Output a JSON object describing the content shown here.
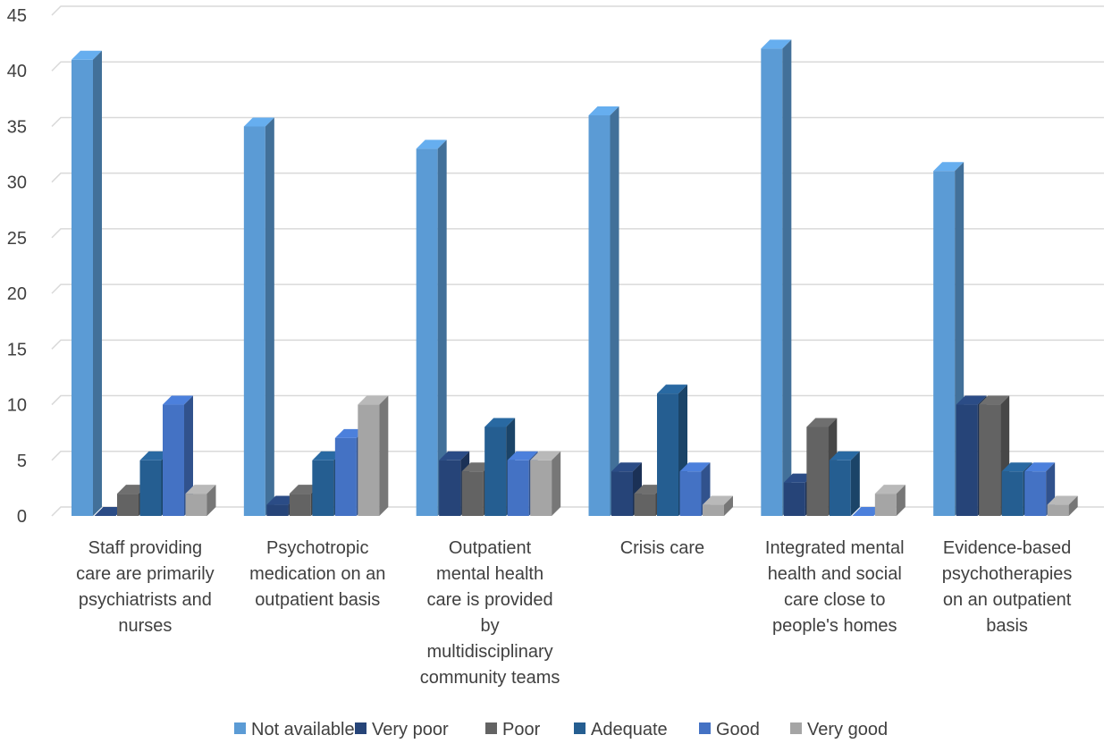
{
  "chart_data": {
    "type": "bar",
    "title": "",
    "xlabel": "",
    "ylabel": "",
    "ylim": [
      0,
      45
    ],
    "yticks": [
      "0",
      "5",
      "10",
      "15",
      "20",
      "25",
      "30",
      "35",
      "40",
      "45"
    ],
    "grid": true,
    "legend_position": "bottom",
    "categories": [
      [
        "Staff providing",
        "care are primarily",
        "psychiatrists and",
        "nurses"
      ],
      [
        "Psychotropic",
        "medication on an",
        "outpatient basis"
      ],
      [
        "Outpatient",
        "mental health",
        "care is provided",
        "by",
        "multidisciplinary",
        "community teams"
      ],
      [
        "Crisis care"
      ],
      [
        "Integrated mental",
        "health and social",
        "care close to",
        "people's homes"
      ],
      [
        "Evidence-based",
        "psychotherapies",
        "on an outpatient",
        "basis"
      ]
    ],
    "series": [
      {
        "name": "Not available",
        "color": "#5B9BD5",
        "values": [
          41,
          35,
          33,
          36,
          42,
          31
        ]
      },
      {
        "name": "Very poor",
        "color": "#264478",
        "values": [
          0,
          1,
          5,
          4,
          3,
          10
        ]
      },
      {
        "name": "Poor",
        "color": "#636363",
        "values": [
          2,
          2,
          4,
          2,
          8,
          10
        ]
      },
      {
        "name": "Adequate",
        "color": "#255E91",
        "values": [
          5,
          5,
          8,
          11,
          5,
          4
        ]
      },
      {
        "name": "Good",
        "color": "#4472C4",
        "values": [
          10,
          7,
          5,
          4,
          0,
          4
        ]
      },
      {
        "name": "Very good",
        "color": "#A5A5A5",
        "values": [
          2,
          10,
          5,
          1,
          2,
          1
        ]
      }
    ]
  }
}
